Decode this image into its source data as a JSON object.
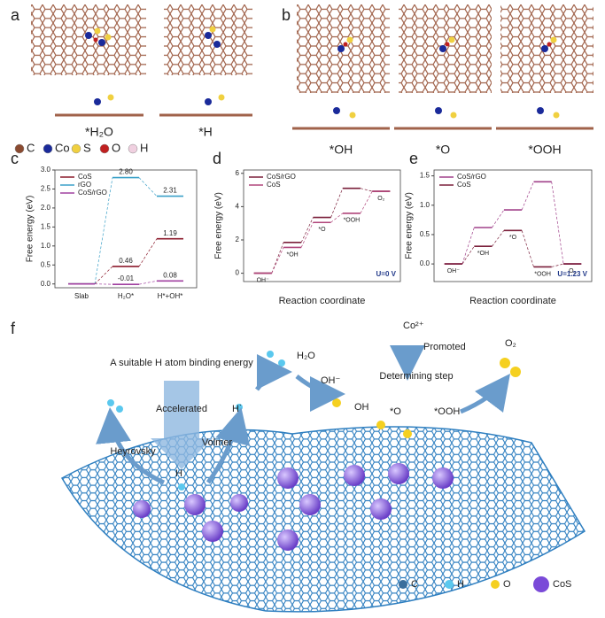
{
  "panel_labels": [
    "a",
    "b",
    "c",
    "d",
    "e",
    "f"
  ],
  "panel_a": {
    "captions": [
      "*H₂O",
      "*H"
    ]
  },
  "panel_b": {
    "captions": [
      "*OH",
      "*O",
      "*OOH"
    ]
  },
  "atom_legend": [
    "C",
    "Co",
    "S",
    "O",
    "H"
  ],
  "chart_data": [
    {
      "type": "step",
      "ylabel": "Free energy (eV)",
      "categories": [
        "Slab",
        "H₂O*",
        "H*+OH*"
      ],
      "series": [
        {
          "name": "CoS",
          "color": "#8b1a2b",
          "values": [
            0,
            0.46,
            1.19
          ],
          "value_labels": [
            null,
            "0.46",
            "1.19"
          ]
        },
        {
          "name": "rGO",
          "color": "#3aa0c8",
          "values": [
            0,
            2.8,
            2.31
          ],
          "value_labels": [
            null,
            "2.80",
            "2.31"
          ]
        },
        {
          "name": "CoS/rGO",
          "color": "#a040a0",
          "values": [
            0,
            -0.01,
            0.08
          ],
          "value_labels": [
            null,
            "-0.01",
            "0.08"
          ]
        }
      ],
      "ylim": [
        -0.1,
        3.0
      ],
      "yticks": [
        {
          "value": 0,
          "label": "0.0"
        },
        0.5,
        {
          "value": 1,
          "label": "1.0"
        },
        1.5,
        {
          "value": 2,
          "label": "2.0"
        },
        2.5,
        {
          "value": 3,
          "label": "3.0"
        }
      ],
      "legend": "upper left"
    },
    {
      "type": "step",
      "ylabel": "Free energy (eV)",
      "xlabel": "Reaction coordinate",
      "categories": [
        "OH⁻",
        "*OH",
        "*O",
        "*OOH",
        "O₂"
      ],
      "series": [
        {
          "name": "CoS/rGO",
          "color": "#7a1f3a",
          "values": [
            0,
            1.85,
            3.35,
            5.1,
            4.92
          ]
        },
        {
          "name": "CoS",
          "color": "#b0457a",
          "values": [
            0,
            1.55,
            3.05,
            3.6,
            4.92
          ]
        }
      ],
      "ylim": [
        -0.5,
        6.2
      ],
      "yticks": [
        0,
        2,
        4,
        6
      ],
      "annotation": "U=0 V",
      "legend": "upper left"
    },
    {
      "type": "step",
      "ylabel": "Free energy (eV)",
      "xlabel": "Reaction coordinate",
      "categories": [
        "OH⁻",
        "*OH",
        "*O",
        "*OOH",
        "O₂"
      ],
      "series": [
        {
          "name": "CoS/rGO",
          "color": "#a0408a",
          "values": [
            0,
            0.62,
            0.92,
            1.4,
            0
          ]
        },
        {
          "name": "CoS",
          "color": "#7a1f3a",
          "values": [
            0,
            0.3,
            0.57,
            -0.05,
            0
          ]
        }
      ],
      "ylim": [
        -0.3,
        1.6
      ],
      "yticks": [
        {
          "value": 0,
          "label": "0.0"
        },
        0.5,
        {
          "value": 1,
          "label": "1.0"
        },
        1.5
      ],
      "annotation": "U=1.23 V",
      "legend": "upper left"
    }
  ],
  "panel_f": {
    "h_binding": "A suitable H atom binding energy",
    "accelerated": "Accelerated",
    "heyrovsky": "Heyrovsky",
    "volmer": "Volmer",
    "h_radical": "H˙",
    "h_atom": "H",
    "h2o": "H₂O",
    "oh_minus": "OH⁻",
    "oh": "OH",
    "o_star": "*O",
    "ooh": "*OOH",
    "co2": "Co²⁺",
    "promoted": "Promoted",
    "determining": "Determining step",
    "o2": "O₂",
    "legend": [
      "C",
      "H",
      "O",
      "CoS"
    ]
  }
}
